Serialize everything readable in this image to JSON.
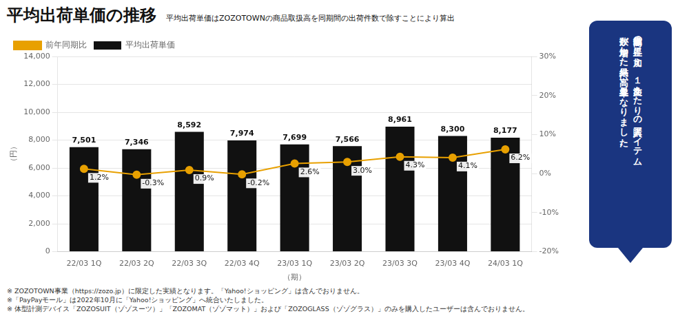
{
  "chart_data": {
    "type": "bar",
    "title": "平均出荷単価の推移",
    "subtitle": "平均出荷単価はZOZOTOWNの商品取扱高を同期間の出荷件数で除すことにより算出",
    "x_label": "（期）",
    "y_label": "（円）",
    "categories": [
      "22/03 1Q",
      "22/03 2Q",
      "22/03 3Q",
      "22/03 4Q",
      "23/03 1Q",
      "23/03 2Q",
      "23/03 3Q",
      "23/03 4Q",
      "24/03 1Q"
    ],
    "series": [
      {
        "name": "平均出荷単価",
        "type": "bar",
        "color": "#111111",
        "values": [
          7501,
          7346,
          8592,
          7974,
          7699,
          7566,
          8961,
          8300,
          8177
        ],
        "value_labels": [
          "7,501",
          "7,346",
          "8,592",
          "7,974",
          "7,699",
          "7,566",
          "8,961",
          "8,300",
          "8,177"
        ]
      },
      {
        "name": "前年同期比",
        "type": "line",
        "axis": "y2",
        "color": "#E8A000",
        "marker": "circle",
        "line_style": "solid",
        "values": [
          1.2,
          -0.3,
          0.9,
          -0.2,
          2.6,
          3.0,
          4.3,
          4.1,
          6.2
        ],
        "value_labels": [
          "1.2%",
          "-0.3%",
          "0.9%",
          "-0.2%",
          "2.6%",
          "3.0%",
          "4.3%",
          "4.1%",
          "6.2%"
        ]
      }
    ],
    "ylim": [
      0,
      14000
    ],
    "yticks": [
      0,
      {
        "value": 2000,
        "label": "2,000"
      },
      {
        "value": 4000,
        "label": "4,000"
      },
      {
        "value": 6000,
        "label": "6,000"
      },
      {
        "value": 8000,
        "label": "8,000"
      },
      {
        "value": 10000,
        "label": "10,000"
      },
      {
        "value": 12000,
        "label": "12,000"
      },
      {
        "value": 14000,
        "label": "14,000"
      }
    ],
    "y2lim": [
      -20,
      30
    ],
    "y2ticks": [
      {
        "value": -20,
        "label": "-20%"
      },
      {
        "value": -10,
        "label": "-10%"
      },
      {
        "value": 0,
        "label": "0%"
      },
      {
        "value": 10,
        "label": "10%"
      },
      {
        "value": 20,
        "label": "20%"
      },
      {
        "value": 30,
        "label": "30%"
      }
    ],
    "grid": true,
    "legend": "top",
    "data_labels": true,
    "footnotes": [
      "※ ZOZOTOWN事業（https://zozo.jp）に限定した実績となります。「Yahoo!ショッピング」は含んでおりません。",
      "※「PayPayモール」は2022年10月に「Yahoo!ショッピング」へ統合いたしました。",
      "※ 体型計測デバイス「ZOZOSUIT（ゾゾスーツ）」「ZOZOMAT（ゾゾマット）」および「ZOZOGLASS（ゾゾグラス）」のみを購入したユーザーは含んでおりません。"
    ],
    "annotations": [
      "商品単価の上昇に加え、１注文あたりの購入アイテム",
      "数が増加した結果、高い上昇率となりました。"
    ]
  }
}
